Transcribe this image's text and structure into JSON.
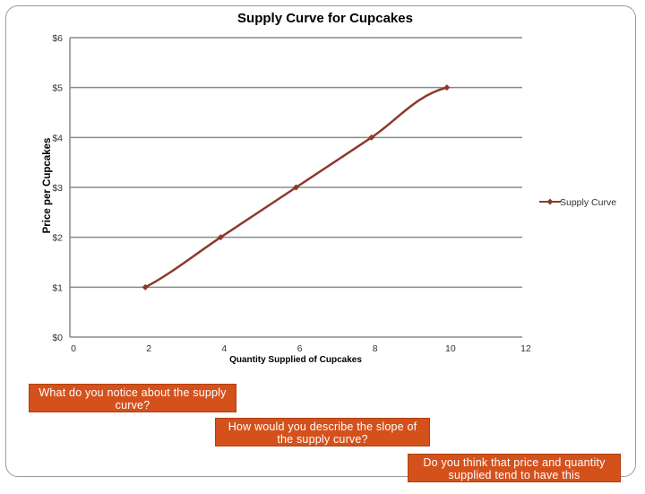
{
  "chart_data": {
    "type": "line",
    "title": "Supply Curve for Cupcakes",
    "xlabel": "Quantity Supplied of Cupcakes",
    "ylabel": "Price per Cupcakes",
    "x_ticks": [
      "0",
      "2",
      "4",
      "6",
      "8",
      "10",
      "12"
    ],
    "y_ticks": [
      "$0",
      "$1",
      "$2",
      "$3",
      "$4",
      "$5",
      "$6"
    ],
    "xlim": [
      0,
      12
    ],
    "ylim": [
      0,
      6
    ],
    "grid": "horizontal",
    "legend_position": "right",
    "series": [
      {
        "name": "Supply Curve",
        "color": "#8b3a2a",
        "points": [
          {
            "x": 2,
            "y": 1
          },
          {
            "x": 4,
            "y": 2
          },
          {
            "x": 6,
            "y": 3
          },
          {
            "x": 8,
            "y": 4
          },
          {
            "x": 10,
            "y": 5
          }
        ]
      }
    ]
  },
  "callouts": [
    "What do you notice about the supply curve?",
    "How would you describe the slope of the supply curve?",
    "Do you think that price and quantity supplied tend to have this relationship?"
  ]
}
